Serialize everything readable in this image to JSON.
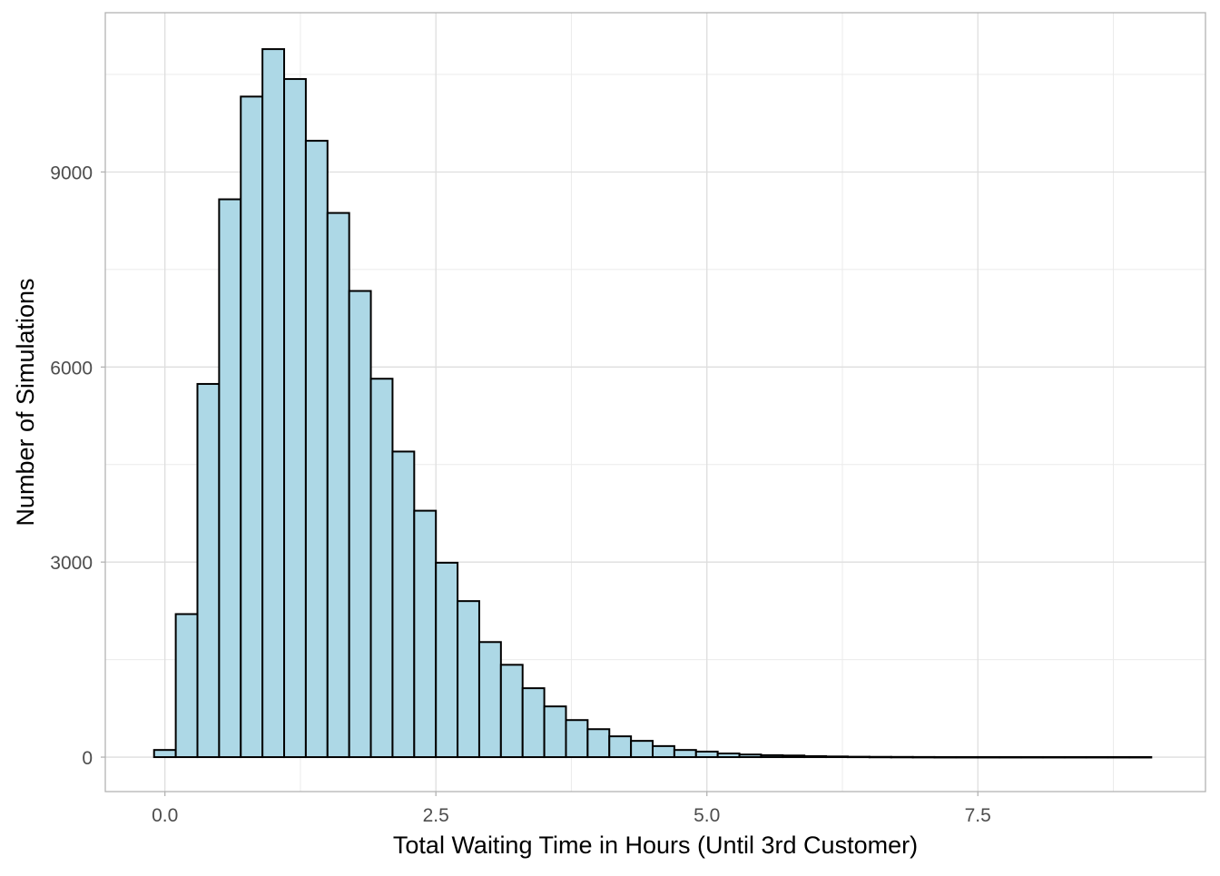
{
  "chart_data": {
    "type": "bar",
    "subtype": "histogram",
    "title": "",
    "xlabel": "Total Waiting Time in Hours (Until 3rd Customer)",
    "ylabel": "Number of Simulations",
    "bin_width": 0.2,
    "bin_centers": [
      0.0,
      0.2,
      0.4,
      0.6,
      0.8,
      1.0,
      1.2,
      1.4,
      1.6,
      1.8,
      2.0,
      2.2,
      2.4,
      2.6,
      2.8,
      3.0,
      3.2,
      3.4,
      3.6,
      3.8,
      4.0,
      4.2,
      4.4,
      4.6,
      4.8,
      5.0,
      5.2,
      5.4,
      5.6,
      5.8,
      6.0,
      6.2,
      6.4,
      6.6,
      6.8,
      7.0,
      7.2,
      7.4,
      7.6,
      7.8,
      8.0,
      8.2,
      8.4,
      8.6,
      8.8,
      9.0
    ],
    "values": [
      110,
      2200,
      5740,
      8580,
      10160,
      10890,
      10430,
      9480,
      8370,
      7170,
      5820,
      4700,
      3790,
      2990,
      2400,
      1770,
      1420,
      1060,
      780,
      570,
      430,
      320,
      250,
      170,
      110,
      85,
      56,
      40,
      30,
      25,
      15,
      10,
      6,
      4,
      3,
      2,
      1,
      1,
      1,
      1,
      1,
      1,
      1,
      1,
      1,
      1
    ],
    "xlim": [
      -0.55,
      9.6
    ],
    "ylim": [
      -530,
      11450
    ],
    "x_ticks": [
      0,
      2.5,
      5.0,
      7.5
    ],
    "x_tick_labels": [
      "0.0",
      "2.5",
      "5.0",
      "7.5"
    ],
    "y_ticks": [
      0,
      3000,
      6000,
      9000
    ],
    "y_tick_labels": [
      "0",
      "3000",
      "6000",
      "9000"
    ],
    "grid": true,
    "fill_color": "#add8e6",
    "edge_color": "#000000"
  }
}
